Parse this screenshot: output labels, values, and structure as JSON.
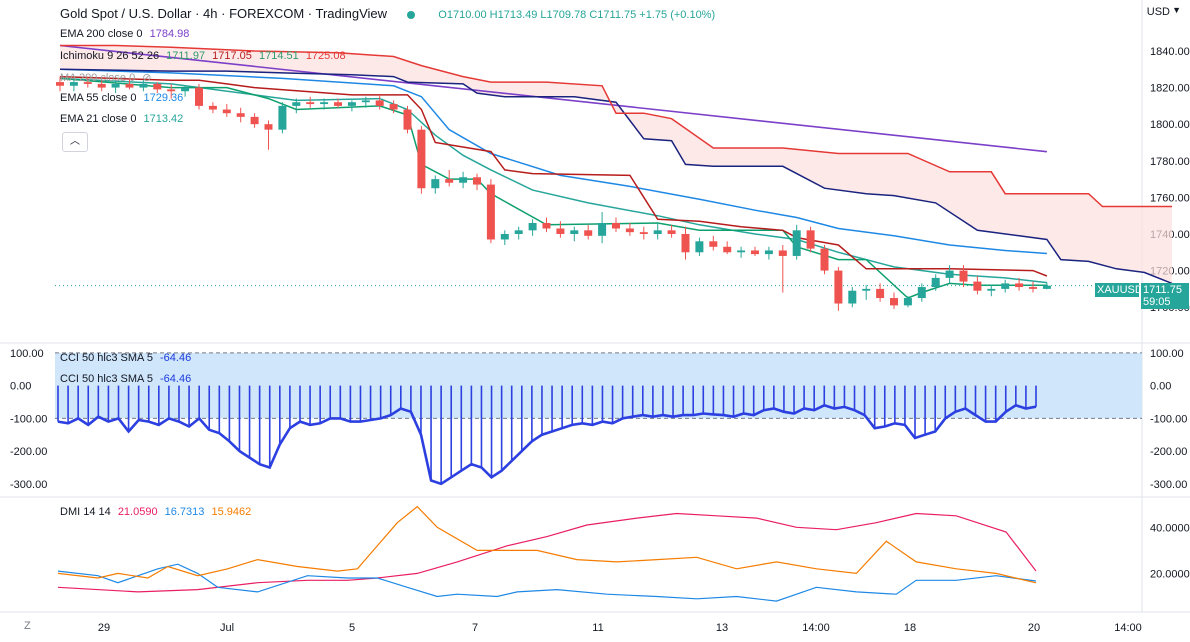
{
  "header": {
    "title": "Gold Spot / U.S. Dollar · 4h · FOREXCOM · TradingView",
    "ohlc": "O1710.00 H1713.49 L1709.78 C1711.75 +1.75 (+0.10%)",
    "currency": "USD"
  },
  "legend": [
    {
      "label": "EMA 200 close 0",
      "value": "1784.98",
      "color": "#7b3fc8"
    },
    {
      "label": "Ichimoku 9 26 52 26",
      "values": [
        "1711.97",
        "1717.05",
        "1714.51",
        "1725.08"
      ],
      "colors": [
        "#2e9a6c",
        "#b71c1c",
        "#2e9a6c",
        "#e53935"
      ]
    },
    {
      "label": "MA 200 close 0",
      "value": "",
      "color": "#9e9e9e"
    },
    {
      "label": "EMA 55 close 0",
      "value": "1729.36",
      "color": "#1e88e5"
    },
    {
      "label": "EMA 21 close 0",
      "value": "1713.42",
      "color": "#26a69a"
    }
  ],
  "price_tag": {
    "symbol": "XAUUSD",
    "price": "1711.75",
    "countdown": "59:05",
    "color": "#26a69a"
  },
  "cci_legend": [
    "CCI 50 hlc3 SMA 5",
    "-64.46"
  ],
  "dmi_legend": [
    "DMI 14 14",
    "21.0590",
    "16.7313",
    "15.9462"
  ],
  "x_labels": [
    "29",
    "Jul",
    "5",
    "7",
    "11",
    "13",
    "14:00",
    "18",
    "20",
    "14:00"
  ],
  "z_button": "Z",
  "chart_data": [
    {
      "type": "candlestick",
      "title": "Gold Spot / U.S. Dollar · 4h",
      "y_ticks": [
        "1840.00",
        "1820.00",
        "1800.00",
        "1780.00",
        "1760.00",
        "1740.00",
        "1720.00",
        "1700.00"
      ],
      "ylim": [
        1693,
        1846
      ],
      "x": [
        0,
        71
      ],
      "candles": [
        [
          1823,
          1826,
          1818,
          1821
        ],
        [
          1821,
          1825,
          1818,
          1823
        ],
        [
          1823,
          1826,
          1820,
          1822
        ],
        [
          1822,
          1824,
          1818,
          1820
        ],
        [
          1820,
          1824,
          1817,
          1822
        ],
        [
          1822,
          1825,
          1819,
          1820
        ],
        [
          1820,
          1824,
          1818,
          1822
        ],
        [
          1822,
          1823,
          1817,
          1819
        ],
        [
          1819,
          1822,
          1814,
          1818
        ],
        [
          1818,
          1821,
          1815,
          1820
        ],
        [
          1820,
          1822,
          1808,
          1810
        ],
        [
          1810,
          1812,
          1806,
          1808
        ],
        [
          1808,
          1811,
          1804,
          1806
        ],
        [
          1806,
          1809,
          1801,
          1804
        ],
        [
          1804,
          1806,
          1798,
          1800
        ],
        [
          1800,
          1802,
          1786,
          1797
        ],
        [
          1797,
          1812,
          1795,
          1810
        ],
        [
          1810,
          1814,
          1806,
          1812
        ],
        [
          1812,
          1815,
          1809,
          1811
        ],
        [
          1811,
          1814,
          1808,
          1812
        ],
        [
          1812,
          1814,
          1809,
          1810
        ],
        [
          1810,
          1813,
          1807,
          1812
        ],
        [
          1812,
          1815,
          1809,
          1813
        ],
        [
          1813,
          1816,
          1808,
          1810
        ],
        [
          1811,
          1813,
          1806,
          1808
        ],
        [
          1808,
          1810,
          1795,
          1797
        ],
        [
          1797,
          1799,
          1762,
          1765
        ],
        [
          1765,
          1772,
          1762,
          1770
        ],
        [
          1770,
          1775,
          1766,
          1768
        ],
        [
          1768,
          1774,
          1765,
          1771
        ],
        [
          1771,
          1773,
          1764,
          1767
        ],
        [
          1767,
          1770,
          1735,
          1737
        ],
        [
          1737,
          1742,
          1734,
          1740
        ],
        [
          1740,
          1744,
          1737,
          1742
        ],
        [
          1742,
          1748,
          1739,
          1746
        ],
        [
          1746,
          1749,
          1741,
          1743
        ],
        [
          1743,
          1747,
          1738,
          1740
        ],
        [
          1740,
          1744,
          1736,
          1742
        ],
        [
          1742,
          1745,
          1737,
          1739
        ],
        [
          1739,
          1752,
          1735,
          1746
        ],
        [
          1746,
          1749,
          1741,
          1743
        ],
        [
          1743,
          1746,
          1739,
          1741
        ],
        [
          1741,
          1744,
          1737,
          1740
        ],
        [
          1740,
          1746,
          1737,
          1742
        ],
        [
          1742,
          1745,
          1738,
          1740
        ],
        [
          1740,
          1744,
          1726,
          1730
        ],
        [
          1730,
          1738,
          1728,
          1736
        ],
        [
          1736,
          1739,
          1731,
          1733
        ],
        [
          1733,
          1736,
          1729,
          1730
        ],
        [
          1730,
          1733,
          1727,
          1731
        ],
        [
          1731,
          1733,
          1728,
          1729
        ],
        [
          1729,
          1733,
          1726,
          1731
        ],
        [
          1731,
          1734,
          1708,
          1728
        ],
        [
          1728,
          1745,
          1726,
          1742
        ],
        [
          1742,
          1744,
          1730,
          1732
        ],
        [
          1732,
          1734,
          1718,
          1720
        ],
        [
          1720,
          1722,
          1698,
          1702
        ],
        [
          1702,
          1711,
          1700,
          1709
        ],
        [
          1709,
          1712,
          1704,
          1710
        ],
        [
          1710,
          1713,
          1703,
          1705
        ],
        [
          1705,
          1708,
          1699,
          1701
        ],
        [
          1701,
          1706,
          1700,
          1705
        ],
        [
          1705,
          1713,
          1703,
          1711
        ],
        [
          1711,
          1718,
          1709,
          1716
        ],
        [
          1716,
          1723,
          1713,
          1720
        ],
        [
          1720,
          1723,
          1711,
          1714
        ],
        [
          1714,
          1717,
          1707,
          1709
        ],
        [
          1709,
          1712,
          1706,
          1710
        ],
        [
          1710,
          1715,
          1708,
          1713
        ],
        [
          1713,
          1716,
          1709,
          1711
        ],
        [
          1711,
          1714,
          1708,
          1710
        ],
        [
          1710,
          1713.49,
          1709.78,
          1711.75
        ]
      ],
      "series": [
        {
          "color": "#7b3fc8",
          "x": [
            0,
            71
          ],
          "y": [
            1843,
            1784.98
          ]
        },
        {
          "color": "#1e88e5",
          "x": [
            0,
            8,
            16,
            24,
            26,
            28,
            31,
            36,
            41,
            46,
            50,
            53,
            56,
            60,
            64,
            68,
            71
          ],
          "y": [
            1830,
            1828,
            1825,
            1821,
            1815,
            1797,
            1784,
            1772,
            1766,
            1759,
            1753,
            1749,
            1743,
            1739,
            1734,
            1731,
            1729.36
          ]
        },
        {
          "color": "#26a69a",
          "x": [
            0,
            8,
            15,
            17,
            23,
            25,
            27,
            29,
            31,
            34,
            38,
            43,
            46,
            50,
            53,
            56,
            60,
            64,
            68,
            71
          ],
          "y": [
            1825,
            1822,
            1815,
            1813,
            1814,
            1808,
            1794,
            1783,
            1775,
            1764,
            1757,
            1750,
            1745,
            1740,
            1737,
            1730,
            1722,
            1718,
            1716,
            1713.42
          ]
        },
        {
          "color": "#0e9f6e",
          "x": [
            0,
            8,
            12,
            15,
            17,
            23,
            25,
            26,
            28,
            30,
            31,
            35,
            43,
            46,
            52,
            53,
            56,
            58,
            61,
            62,
            64,
            66,
            71
          ],
          "y": [
            1825,
            1820,
            1820,
            1814,
            1808,
            1810,
            1805,
            1778,
            1770,
            1770,
            1762,
            1745,
            1746,
            1742,
            1742,
            1733,
            1726,
            1726,
            1705,
            1708,
            1713,
            1712,
            1711.97
          ]
        },
        {
          "color": "#b71c1c",
          "x": [
            0,
            8,
            10,
            12,
            14,
            21,
            25,
            26,
            27,
            31,
            32,
            34,
            41,
            43,
            46,
            49,
            52,
            53,
            56,
            58,
            64,
            70,
            71
          ],
          "y": [
            1826,
            1824,
            1824,
            1822,
            1820,
            1816,
            1816,
            1808,
            1790,
            1785,
            1775,
            1773,
            1772,
            1748,
            1747,
            1744,
            1742,
            1738,
            1734,
            1721,
            1721,
            1720,
            1717.05
          ]
        },
        {
          "color": "#1a237e",
          "x": [
            0,
            8,
            12,
            16,
            21,
            24,
            25,
            29,
            30,
            32,
            37,
            40,
            41,
            42,
            44,
            45,
            47,
            52,
            55,
            58,
            60,
            63,
            66,
            69,
            71,
            72,
            74,
            76,
            78,
            80
          ],
          "y": [
            1830,
            1829,
            1829,
            1828,
            1827,
            1826,
            1823,
            1822,
            1817,
            1815,
            1815,
            1812,
            1802,
            1792,
            1791,
            1778,
            1777,
            1777,
            1765,
            1762,
            1761,
            1757,
            1742,
            1739,
            1737,
            1726,
            1725,
            1721,
            1719,
            1713
          ]
        },
        {
          "color": "#e53935",
          "x": [
            0,
            4,
            8,
            14,
            20,
            24,
            26,
            29,
            31,
            35,
            39,
            40,
            42,
            44,
            47,
            52,
            56,
            61,
            64,
            67,
            68,
            74,
            75,
            80
          ],
          "y": [
            1843,
            1843,
            1842,
            1840,
            1839,
            1837,
            1832,
            1826,
            1823,
            1823,
            1821,
            1806,
            1806,
            1803,
            1787,
            1787,
            1784,
            1784,
            1774,
            1774,
            1762,
            1762,
            1755,
            1755
          ]
        }
      ]
    },
    {
      "type": "bar",
      "title": "CCI 50 hlc3 SMA 5",
      "y_ticks": [
        "100.00",
        "0.00",
        "-100.00",
        "-200.00",
        "-300.00"
      ],
      "ylim": [
        -325,
        115
      ],
      "band": [
        -100,
        100
      ],
      "values": [
        -110,
        -115,
        -100,
        -120,
        -95,
        -110,
        -100,
        -140,
        -105,
        -110,
        -120,
        -100,
        -110,
        -125,
        -100,
        -135,
        -145,
        -170,
        -200,
        -220,
        -240,
        -250,
        -180,
        -130,
        -110,
        -120,
        -115,
        -100,
        -100,
        -110,
        -110,
        -105,
        -100,
        -90,
        -70,
        -80,
        -150,
        -290,
        -300,
        -280,
        -260,
        -240,
        -250,
        -280,
        -260,
        -230,
        -200,
        -170,
        -150,
        -140,
        -130,
        -120,
        -115,
        -120,
        -110,
        -115,
        -100,
        -95,
        -90,
        -95,
        -90,
        -95,
        -90,
        -90,
        -85,
        -88,
        -90,
        -95,
        -85,
        -90,
        -75,
        -70,
        -80,
        -85,
        -70,
        -75,
        -60,
        -70,
        -65,
        -75,
        -90,
        -130,
        -125,
        -115,
        -120,
        -160,
        -150,
        -140,
        -100,
        -80,
        -70,
        -90,
        -110,
        -110,
        -80,
        -60,
        -70,
        -64.46
      ]
    },
    {
      "type": "line",
      "title": "DMI 14 14",
      "y_ticks": [
        "40.0000",
        "20.0000"
      ],
      "ylim": [
        5,
        51
      ],
      "series": [
        {
          "color": "#e91e63",
          "x": [
            0,
            8,
            14,
            20,
            25,
            29,
            32,
            36,
            40,
            45,
            49,
            53,
            58,
            62,
            66,
            70,
            74,
            78,
            82,
            86,
            90,
            95,
            98
          ],
          "y": [
            14,
            12,
            13,
            16,
            17,
            17,
            18,
            20,
            25,
            32,
            36,
            41,
            44,
            46,
            45,
            44,
            40,
            39,
            42,
            46,
            45,
            38,
            21.059
          ]
        },
        {
          "color": "#1e88e5",
          "x": [
            0,
            4,
            6,
            10,
            12,
            14,
            16,
            20,
            25,
            29,
            32,
            35,
            38,
            40,
            44,
            46,
            50,
            55,
            60,
            64,
            68,
            72,
            76,
            80,
            84,
            86,
            90,
            94,
            98
          ],
          "y": [
            21,
            19,
            16,
            22,
            24,
            20,
            14,
            12,
            19,
            18,
            18,
            14,
            10,
            11,
            10,
            12,
            13,
            11,
            10,
            9,
            10,
            8,
            14,
            12,
            11,
            17,
            17,
            19,
            16.7313
          ]
        },
        {
          "color": "#f57c00",
          "x": [
            0,
            4,
            6,
            9,
            11,
            14,
            17,
            20,
            24,
            28,
            30,
            34,
            36,
            38,
            42,
            44,
            48,
            52,
            56,
            60,
            64,
            68,
            72,
            76,
            80,
            83,
            86,
            90,
            94,
            98
          ],
          "y": [
            20,
            18,
            20,
            18,
            23,
            19,
            22,
            26,
            23,
            21,
            22,
            42,
            49,
            40,
            30,
            30,
            30,
            26,
            25,
            26,
            27,
            22,
            25,
            22,
            20,
            34,
            25,
            22,
            20,
            15.9462
          ]
        }
      ]
    }
  ]
}
